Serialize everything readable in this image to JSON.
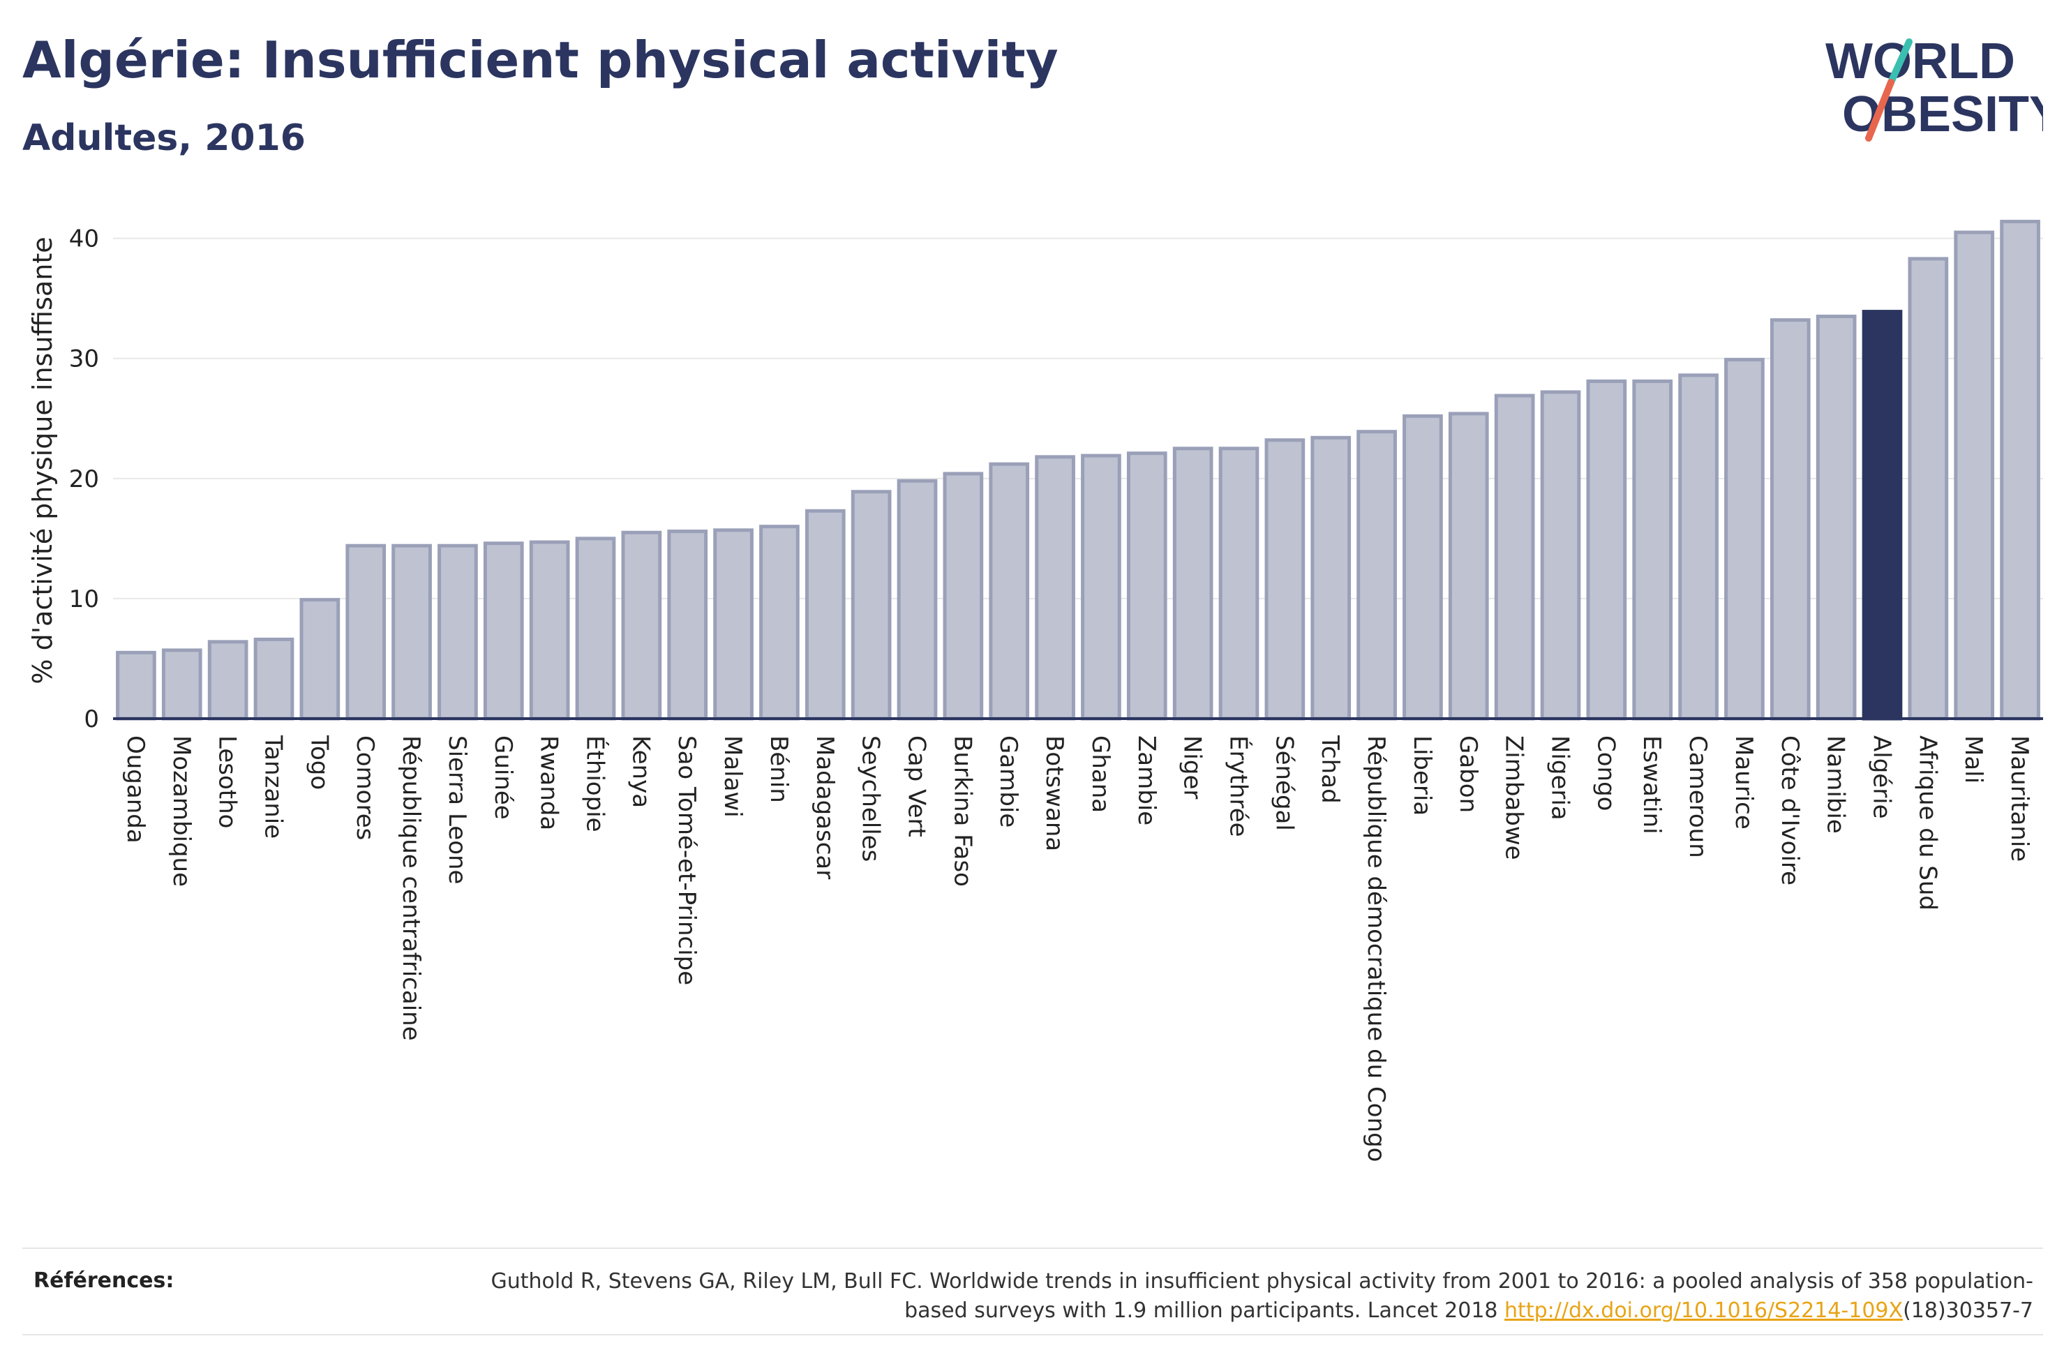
{
  "header": {
    "title": "Algérie: Insufficient physical activity",
    "subtitle": "Adultes, 2016"
  },
  "logo": {
    "line1": "WORLD",
    "line2": "OBESITY",
    "text_color": "#2b3560",
    "slash_colors": [
      "#3bbfb0",
      "#e8664e"
    ]
  },
  "colors": {
    "bar_fill": "#bfc3d1",
    "bar_stroke": "#9aa0b8",
    "highlight": "#2b3560",
    "grid": "#e8e8e8",
    "axis": "#2b3560"
  },
  "chart_data": {
    "type": "bar",
    "ylabel": "% d'activité physique insuffisante",
    "ylim": [
      0,
      43
    ],
    "yticks": [
      0,
      10,
      20,
      30,
      40
    ],
    "grid": true,
    "highlight_category": "Algérie",
    "categories": [
      "Ouganda",
      "Mozambique",
      "Lesotho",
      "Tanzanie",
      "Togo",
      "Comores",
      "République centrafricaine",
      "Sierra Leone",
      "Guinée",
      "Rwanda",
      "Éthiopie",
      "Kenya",
      "Sao Tomé-et-Principe",
      "Malawi",
      "Bénin",
      "Madagascar",
      "Seychelles",
      "Cap Vert",
      "Burkina Faso",
      "Gambie",
      "Botswana",
      "Ghana",
      "Zambie",
      "Niger",
      "Érythrée",
      "Sénégal",
      "Tchad",
      "République démocratique du Congo",
      "Liberia",
      "Gabon",
      "Zimbabwe",
      "Nigeria",
      "Congo",
      "Eswatini",
      "Cameroun",
      "Maurice",
      "Côte d'Ivoire",
      "Namibie",
      "Algérie",
      "Afrique du Sud",
      "Mali",
      "Mauritanie"
    ],
    "values": [
      5.5,
      5.7,
      6.4,
      6.6,
      9.9,
      14.4,
      14.4,
      14.4,
      14.6,
      14.7,
      15.0,
      15.5,
      15.6,
      15.7,
      16.0,
      17.3,
      18.9,
      19.8,
      20.4,
      21.2,
      21.8,
      21.9,
      22.1,
      22.5,
      22.5,
      23.2,
      23.4,
      23.9,
      25.2,
      25.4,
      26.9,
      27.2,
      28.1,
      28.1,
      28.6,
      29.9,
      33.2,
      33.5,
      33.9,
      38.3,
      40.5,
      41.4
    ]
  },
  "references": {
    "label": "Références:",
    "text_part1": "Guthold R, Stevens GA, Riley LM, Bull FC. Worldwide trends in insufficient physical activity from 2001 to 2016: a pooled analysis of 358 population-based surveys with 1.9 million participants. Lancet 2018 ",
    "link": "http://dx.doi.org/10.1016/S2214-109X",
    "text_part2": "(18)30357-7"
  }
}
